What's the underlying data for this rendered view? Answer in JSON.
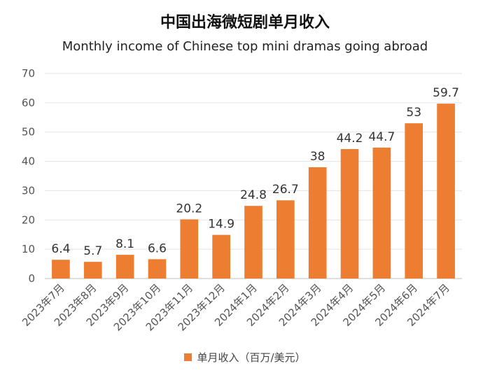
{
  "chart_data": {
    "type": "bar",
    "title": "中国出海微短剧单月收入",
    "subtitle": "Monthly income of Chinese top mini dramas going abroad",
    "categories": [
      "2023年7月",
      "2023年8月",
      "2023年9月",
      "2023年10月",
      "2023年11月",
      "2023年12月",
      "2024年1月",
      "2024年2月",
      "2024年3月",
      "2024年4月",
      "2024年5月",
      "2024年6月",
      "2024年7月"
    ],
    "series": [
      {
        "name": "单月收入（百万/美元）",
        "values": [
          6.4,
          5.7,
          8.1,
          6.6,
          20.2,
          14.9,
          24.8,
          26.7,
          38,
          44.2,
          44.7,
          53,
          59.7
        ],
        "color": "#ED7D31"
      }
    ],
    "ylim": [
      0,
      70
    ],
    "yticks": [
      0,
      10,
      20,
      30,
      40,
      50,
      60,
      70
    ],
    "grid": true,
    "legend": "bottom"
  }
}
